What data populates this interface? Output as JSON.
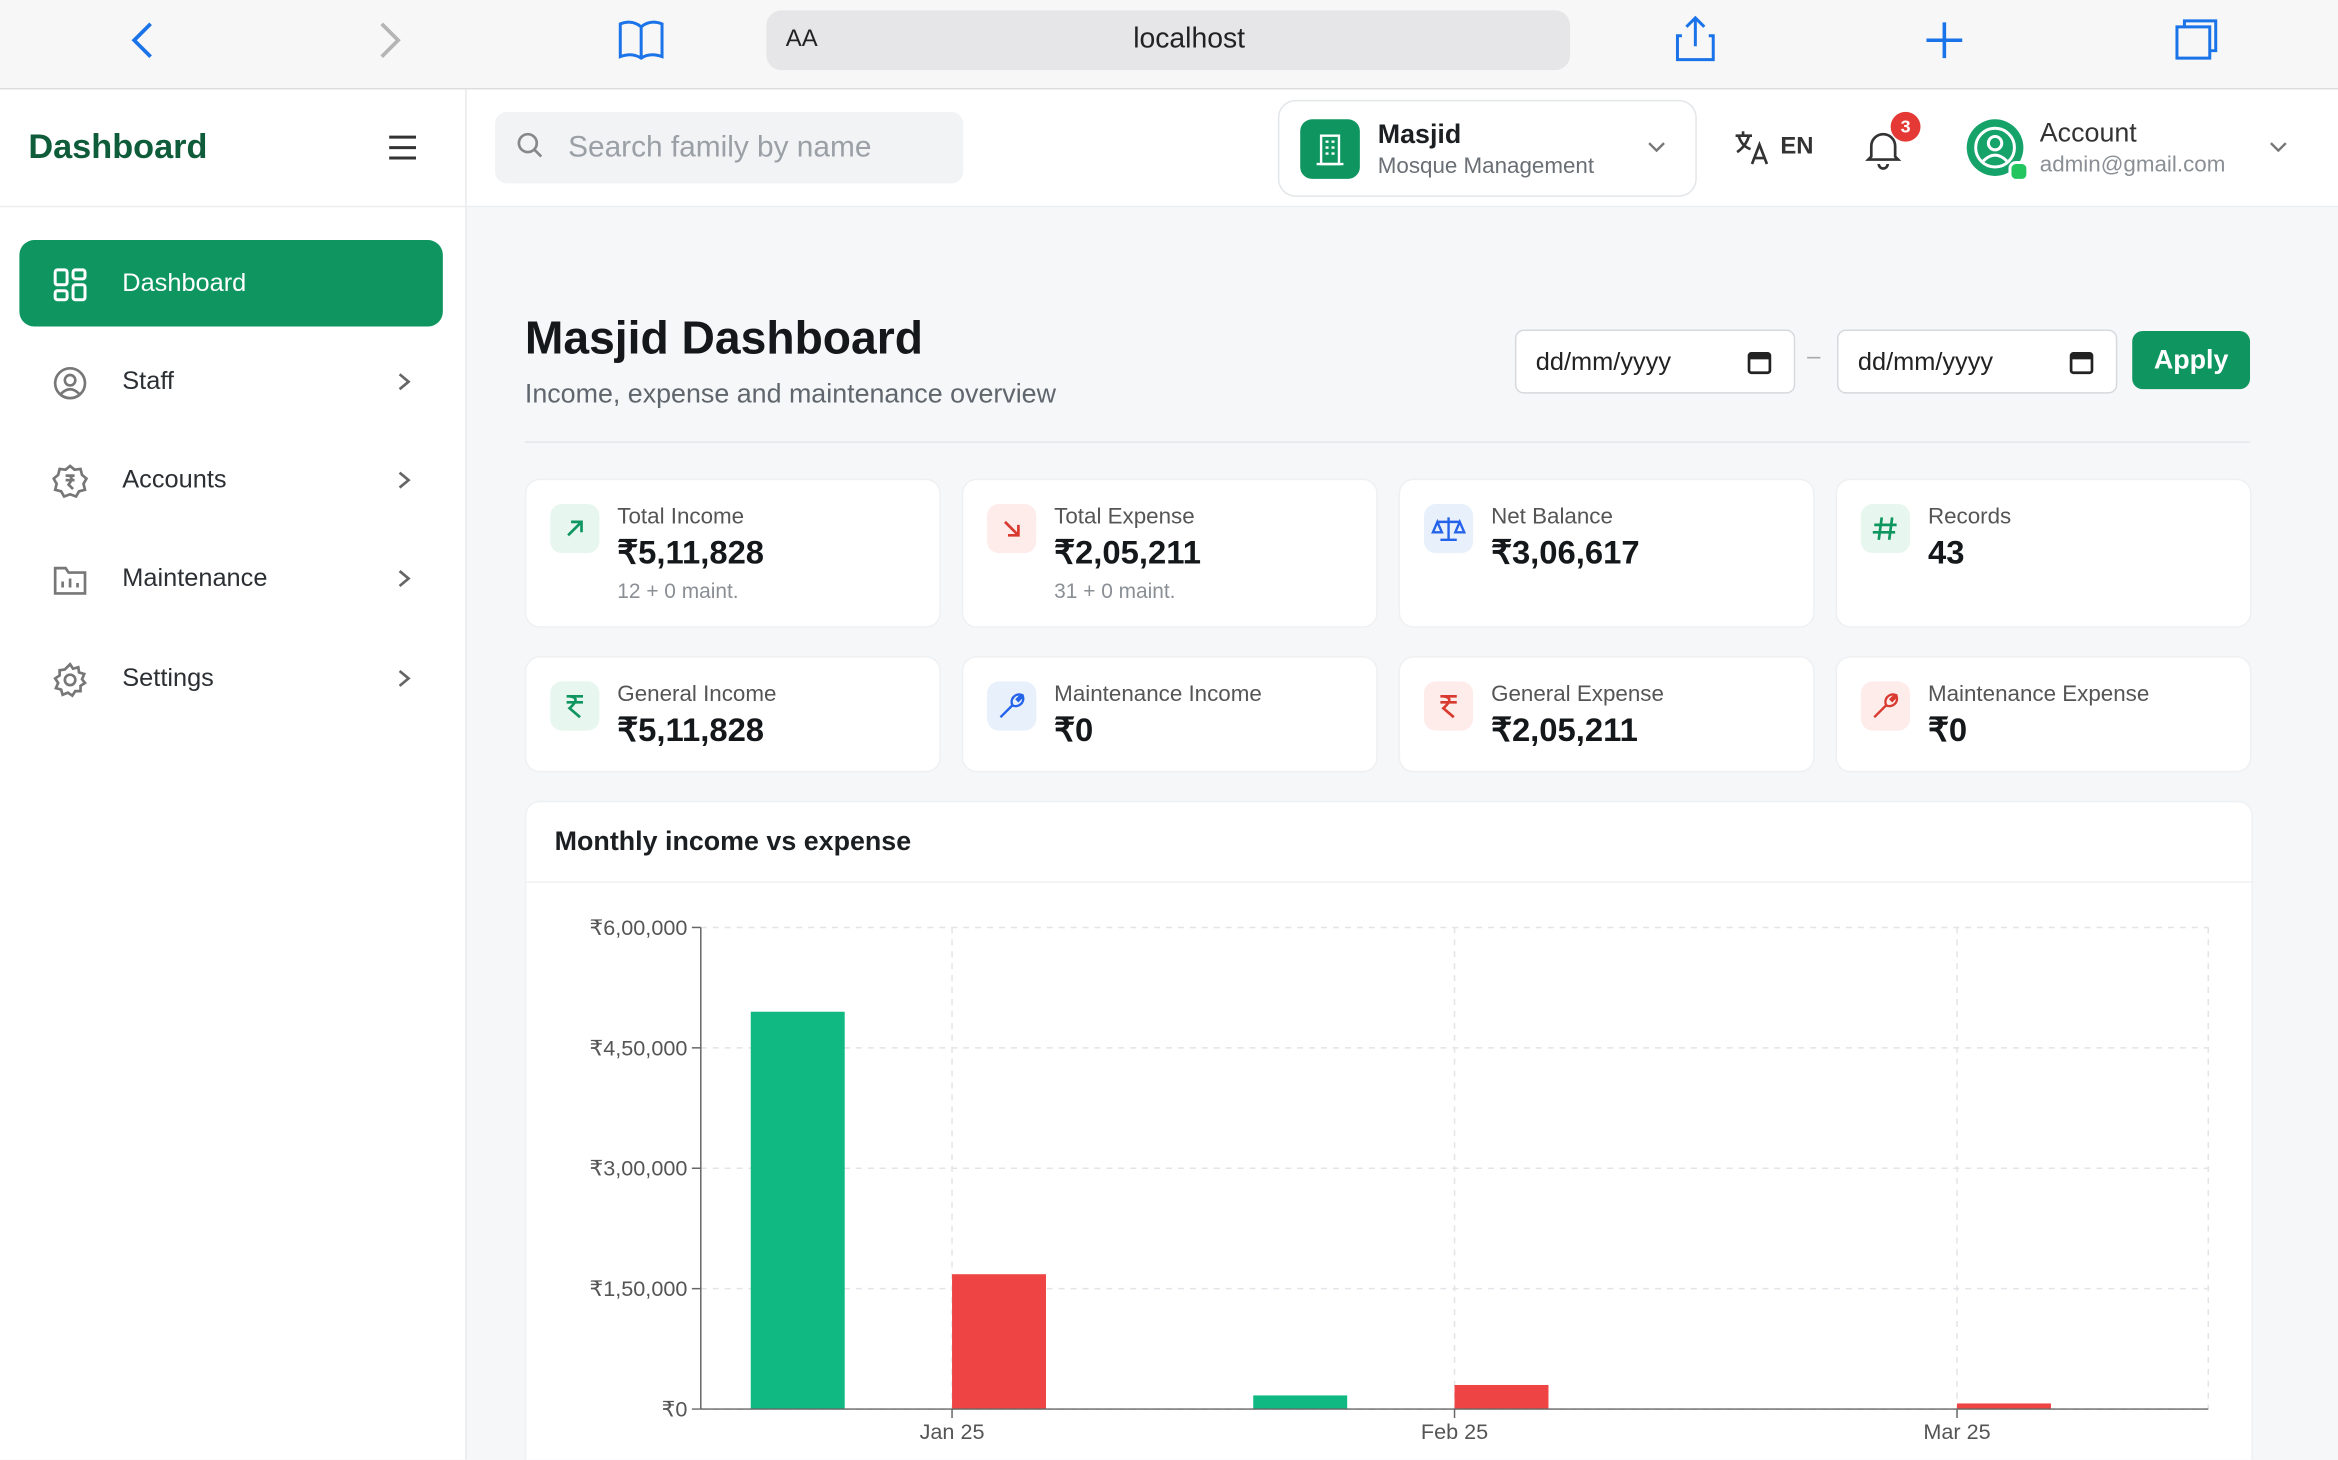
{
  "browser": {
    "text_size": "AA",
    "url": "localhost"
  },
  "sidebar": {
    "brand": "Dashboard",
    "items": [
      "Dashboard",
      "Staff",
      "Accounts",
      "Maintenance",
      "Settings"
    ]
  },
  "header": {
    "search_placeholder": "Search family by name",
    "org_name": "Masjid",
    "org_subtitle": "Mosque Management",
    "language": "EN",
    "notification_count": "3",
    "account_name": "Account",
    "account_email": "admin@gmail.com"
  },
  "dashboard": {
    "title": "Masjid Dashboard",
    "subtitle": "Income, expense and maintenance overview",
    "date_from": "dd/mm/yyyy",
    "date_separator": "–",
    "date_to": "dd/mm/yyyy",
    "apply": "Apply"
  },
  "stats": [
    {
      "label": "Total Income",
      "value": "₹5,11,828",
      "note": "12 + 0 maint."
    },
    {
      "label": "Total Expense",
      "value": "₹2,05,211",
      "note": "31 + 0 maint."
    },
    {
      "label": "Net Balance",
      "value": "₹3,06,617"
    },
    {
      "label": "Records",
      "value": "43"
    },
    {
      "label": "General Income",
      "value": "₹5,11,828"
    },
    {
      "label": "Maintenance Income",
      "value": "₹0"
    },
    {
      "label": "General Expense",
      "value": "₹2,05,211"
    },
    {
      "label": "Maintenance Expense",
      "value": "₹0"
    }
  ],
  "chart_data": {
    "type": "bar",
    "title": "Monthly income vs expense",
    "categories": [
      "Jan 25",
      "Feb 25",
      "Mar 25"
    ],
    "series": [
      {
        "color": "#10b981",
        "values": [
          495000,
          17000,
          0
        ]
      },
      {
        "color": "#ef4444",
        "values": [
          168000,
          30000,
          7000
        ]
      }
    ],
    "ylim": [
      0,
      600000
    ],
    "yticks": [
      {
        "value": 0,
        "label": "₹0"
      },
      {
        "value": 150000,
        "label": "₹1,50,000"
      },
      {
        "value": 300000,
        "label": "₹3,00,000"
      },
      {
        "value": 450000,
        "label": "₹4,50,000"
      },
      {
        "value": 600000,
        "label": "₹6,00,000"
      }
    ],
    "grid": true
  }
}
